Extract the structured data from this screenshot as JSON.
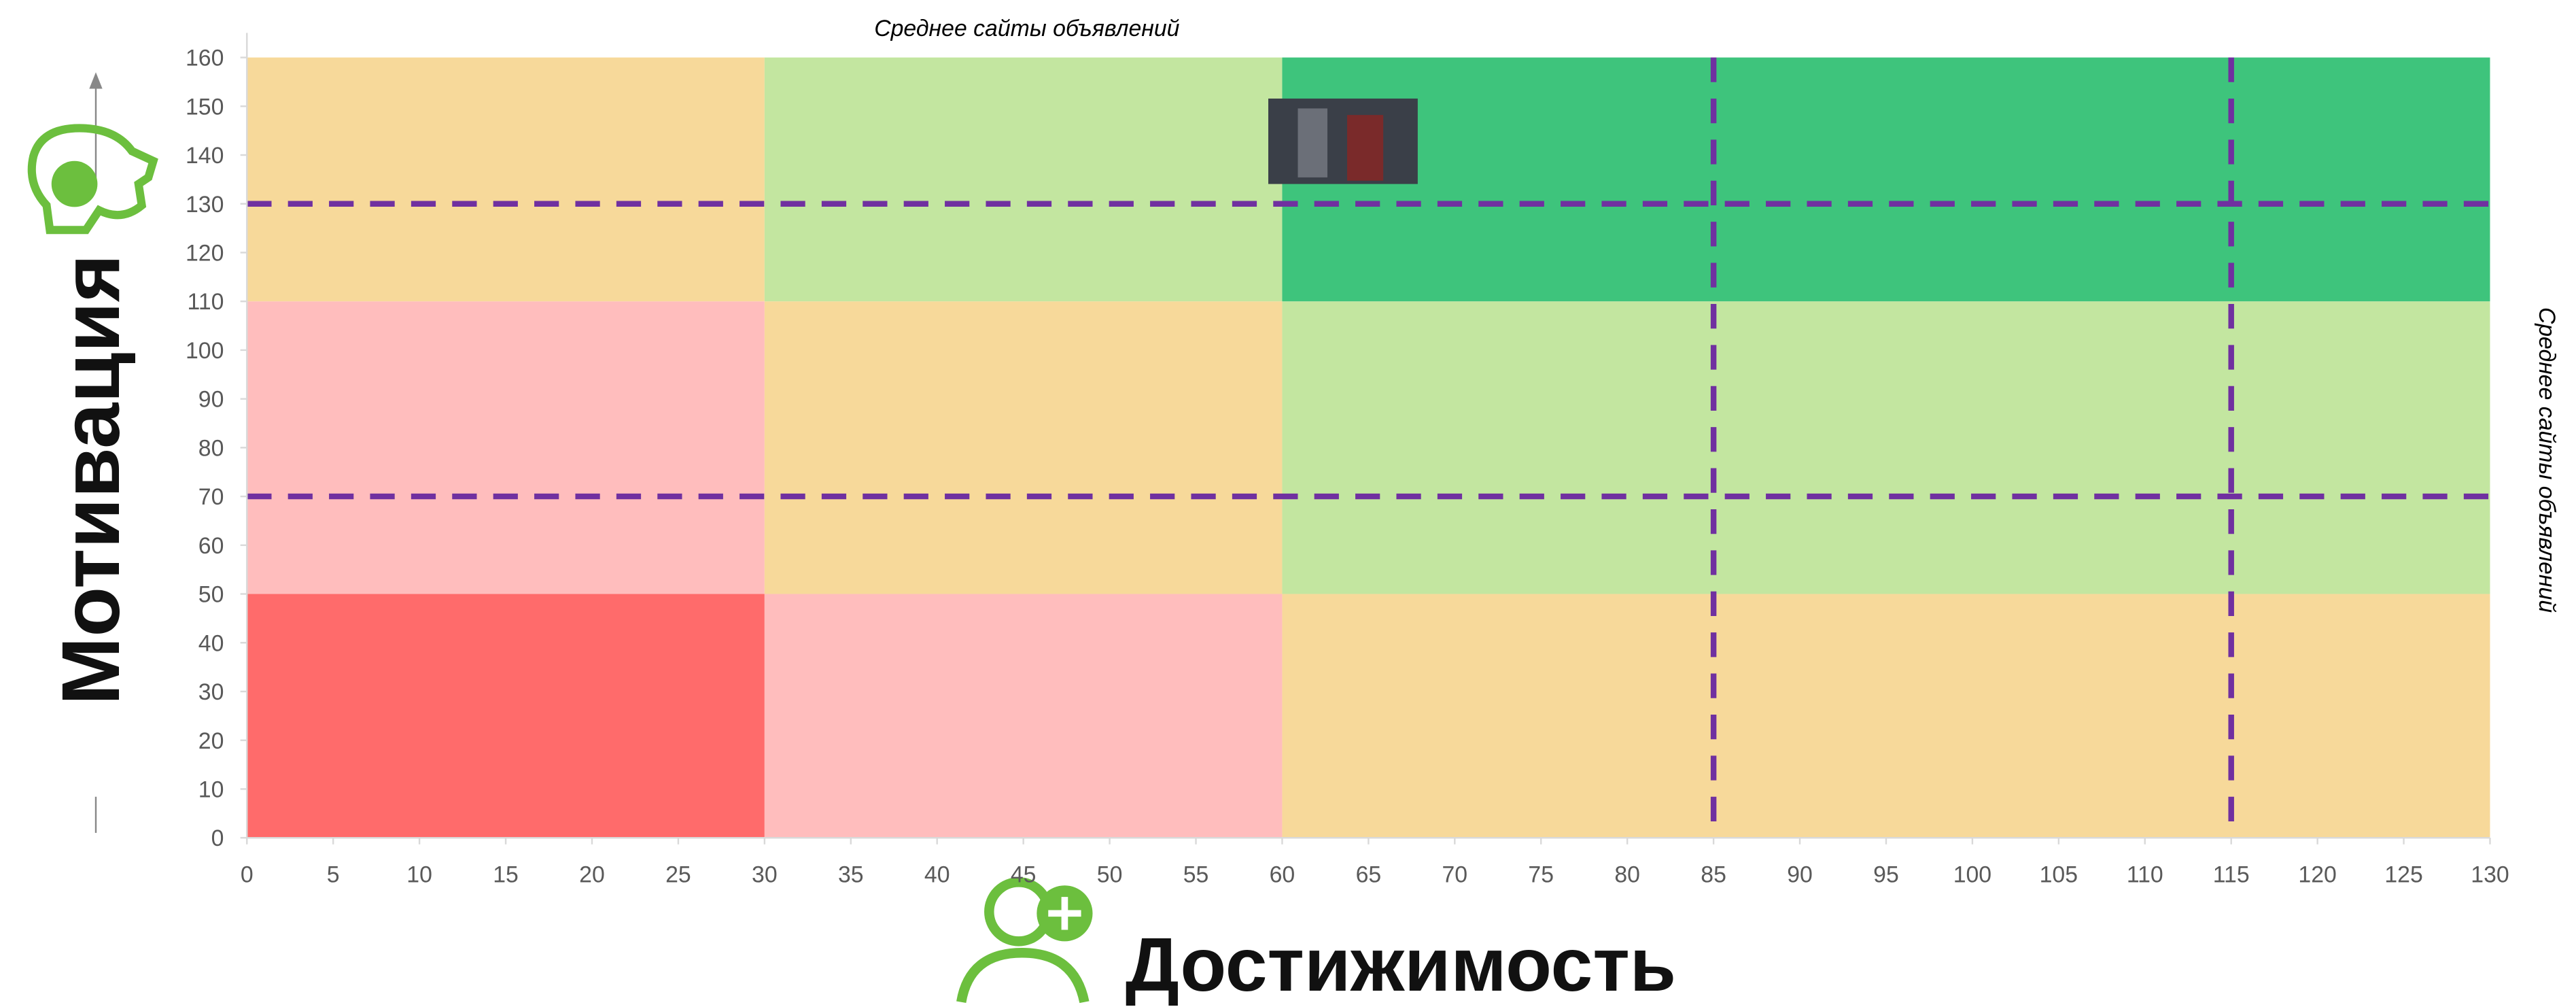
{
  "chart_data": {
    "type": "zones",
    "x_title": "Достижимость",
    "y_title": "Мотивация",
    "annotations": [
      "Среднее сайты объявлений",
      "Среднее сайты объявлений"
    ],
    "xlim": [
      0,
      130
    ],
    "ylim": [
      0,
      160
    ],
    "xticks": [
      0,
      5,
      10,
      15,
      20,
      25,
      30,
      35,
      40,
      45,
      50,
      55,
      60,
      65,
      70,
      75,
      80,
      85,
      90,
      95,
      100,
      105,
      110,
      115,
      120,
      125,
      130
    ],
    "yticks": [
      0,
      10,
      20,
      30,
      40,
      50,
      60,
      70,
      80,
      90,
      100,
      110,
      120,
      130,
      140,
      150,
      160
    ],
    "zones": [
      {
        "x": [
          0,
          30
        ],
        "y": [
          0,
          50
        ],
        "color": "#ff6b6b"
      },
      {
        "x": [
          30,
          60
        ],
        "y": [
          0,
          50
        ],
        "color": "#ffbdbd"
      },
      {
        "x": [
          60,
          130
        ],
        "y": [
          0,
          50
        ],
        "color": "#f7d99a"
      },
      {
        "x": [
          0,
          30
        ],
        "y": [
          50,
          110
        ],
        "color": "#ffbdbd"
      },
      {
        "x": [
          30,
          60
        ],
        "y": [
          50,
          110
        ],
        "color": "#f7d99a"
      },
      {
        "x": [
          60,
          130
        ],
        "y": [
          50,
          110
        ],
        "color": "#c3e6a0"
      },
      {
        "x": [
          0,
          30
        ],
        "y": [
          110,
          160
        ],
        "color": "#f7d99a"
      },
      {
        "x": [
          30,
          60
        ],
        "y": [
          110,
          160
        ],
        "color": "#c3e6a0"
      },
      {
        "x": [
          60,
          130
        ],
        "y": [
          110,
          160
        ],
        "color": "#3ec47c"
      }
    ],
    "vlines": [
      85,
      115
    ],
    "hlines": [
      130,
      70
    ],
    "line_color": "#7030a0"
  }
}
